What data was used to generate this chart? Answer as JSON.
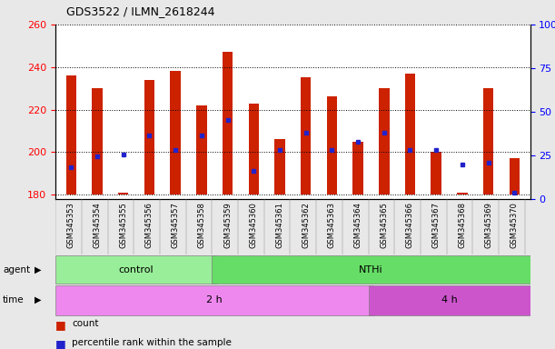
{
  "title": "GDS3522 / ILMN_2618244",
  "samples": [
    "GSM345353",
    "GSM345354",
    "GSM345355",
    "GSM345356",
    "GSM345357",
    "GSM345358",
    "GSM345359",
    "GSM345360",
    "GSM345361",
    "GSM345362",
    "GSM345363",
    "GSM345364",
    "GSM345365",
    "GSM345366",
    "GSM345367",
    "GSM345368",
    "GSM345369",
    "GSM345370"
  ],
  "bar_tops": [
    236,
    230,
    181,
    234,
    238,
    222,
    247,
    223,
    206,
    235,
    226,
    205,
    230,
    237,
    200,
    181,
    230,
    197
  ],
  "bar_bottom": 180,
  "blue_dot_values": [
    193,
    198,
    199,
    208,
    201,
    208,
    215,
    191,
    201,
    209,
    201,
    205,
    209,
    201,
    201,
    194,
    195,
    181
  ],
  "ylim_left": [
    178,
    260
  ],
  "ylim_right": [
    0,
    100
  ],
  "yticks_left": [
    180,
    200,
    220,
    240,
    260
  ],
  "yticks_right": [
    0,
    25,
    50,
    75,
    100
  ],
  "agent_groups": [
    {
      "label": "control",
      "start": 0,
      "end": 6,
      "color": "#99ee99"
    },
    {
      "label": "NTHi",
      "start": 6,
      "end": 18,
      "color": "#66dd66"
    }
  ],
  "time_groups": [
    {
      "label": "2 h",
      "start": 0,
      "end": 12,
      "color": "#ee88ee"
    },
    {
      "label": "4 h",
      "start": 12,
      "end": 18,
      "color": "#cc55cc"
    }
  ],
  "bar_color": "#cc2200",
  "dot_color": "#2222cc",
  "legend_items": [
    {
      "label": "count",
      "color": "#cc2200"
    },
    {
      "label": "percentile rank within the sample",
      "color": "#2222cc"
    }
  ],
  "background_color": "#e8e8e8",
  "plot_bg": "white",
  "xlabel_bg": "#cccccc",
  "bar_width": 0.4
}
